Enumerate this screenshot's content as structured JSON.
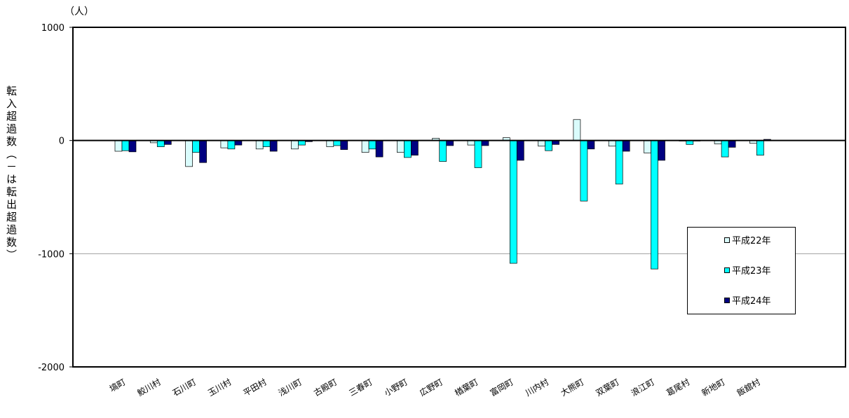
{
  "chart_data": {
    "type": "bar",
    "unit_label": "（人）",
    "ylabel": "転入超過数（－は転出超過数）",
    "ylim": [
      -2000,
      1000
    ],
    "yticks": [
      1000,
      0,
      -1000,
      -2000
    ],
    "ytick_labels": [
      "1000",
      "0",
      "-1000",
      "-2000"
    ],
    "grid": "horizontal gridline at -1000",
    "legend_position": "right",
    "categories": [
      "塙町",
      "鮫川村",
      "石川町",
      "玉川村",
      "平田村",
      "浅川町",
      "古殿町",
      "三春町",
      "小野町",
      "広野町",
      "楢葉町",
      "富岡町",
      "川内村",
      "大熊町",
      "双葉町",
      "浪江町",
      "葛尾村",
      "新地町",
      "飯舘村"
    ],
    "series": [
      {
        "name": "平成22年",
        "color": "#dafcfc",
        "values": [
          -95,
          -20,
          -230,
          -65,
          -75,
          -75,
          -55,
          -105,
          -105,
          20,
          -40,
          25,
          -50,
          185,
          -50,
          -110,
          -5,
          -30,
          -25
        ]
      },
      {
        "name": "平成23年",
        "color": "#00ffff",
        "values": [
          -90,
          -55,
          -105,
          -75,
          -55,
          -40,
          -45,
          -75,
          -150,
          -185,
          -240,
          -1085,
          -90,
          -535,
          -385,
          -1135,
          -35,
          -145,
          -130
        ]
      },
      {
        "name": "平成24年",
        "color": "#000080",
        "values": [
          -100,
          -35,
          -195,
          -40,
          -95,
          -10,
          -80,
          -145,
          -130,
          -45,
          -45,
          -175,
          -35,
          -75,
          -95,
          -175,
          -5,
          -60,
          10
        ]
      }
    ]
  }
}
